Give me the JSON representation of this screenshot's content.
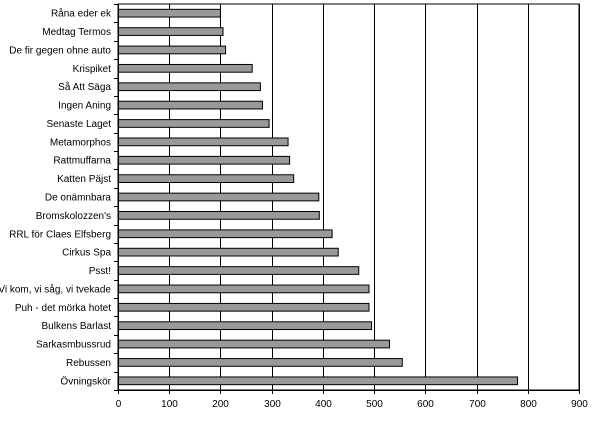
{
  "chart_data": {
    "type": "bar",
    "orientation": "horizontal",
    "categories": [
      "Råna eder ek",
      "Medtag Termos",
      "De fir gegen ohne auto",
      "Krispiket",
      "Så Att Säga",
      "Ingen Aning",
      "Senaste Laget",
      "Metamorphos",
      "Rattmuffarna",
      "Katten Päjst",
      "De onämnbara",
      "Bromskolozzen's",
      "RRL för Claes Elfsberg",
      "Cirkus Spa",
      "Psst!",
      "Vi kom, vi såg, vi tvekade",
      "Puh - det mörka hotet",
      "Bulkens Barlast",
      "Sarkasmbussrud",
      "Rebussen",
      "Övningskör"
    ],
    "values": [
      200,
      205,
      210,
      262,
      278,
      282,
      295,
      332,
      335,
      343,
      392,
      393,
      418,
      430,
      470,
      490,
      490,
      495,
      530,
      555,
      780
    ],
    "xlim": [
      0,
      900
    ],
    "xticks": [
      0,
      100,
      200,
      300,
      400,
      500,
      600,
      700,
      800,
      900
    ],
    "grid": "vertical",
    "bar_color": "#999999",
    "title": "",
    "xlabel": "",
    "ylabel": ""
  }
}
